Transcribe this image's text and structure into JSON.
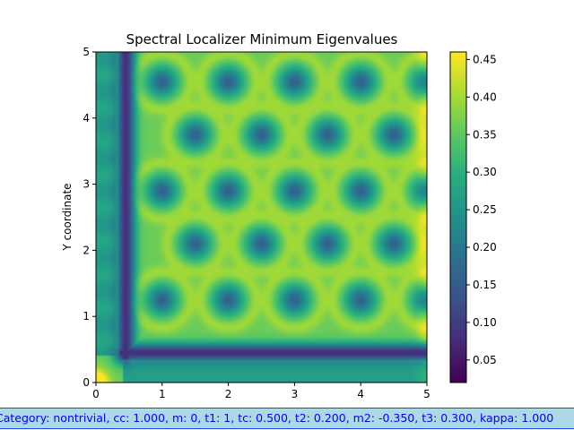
{
  "chart_data": {
    "type": "heatmap",
    "title": "Spectral Localizer Minimum Eigenvalues",
    "xlabel": "",
    "ylabel": "Y coordinate",
    "xlim": [
      0,
      5
    ],
    "ylim": [
      0,
      5
    ],
    "x_ticks": [
      0,
      1,
      2,
      3,
      4,
      5
    ],
    "y_ticks": [
      0,
      1,
      2,
      3,
      4,
      5
    ],
    "colormap": "viridis",
    "colorbar": {
      "range": [
        0.02,
        0.46
      ],
      "ticks": [
        "0.05",
        "0.10",
        "0.15",
        "0.20",
        "0.25",
        "0.30",
        "0.35",
        "0.40",
        "0.45"
      ]
    },
    "pattern": {
      "lattice": "triangular",
      "low_value_centers_rows": [
        {
          "y": 1.25,
          "x": [
            1.0,
            2.0,
            3.0,
            4.0,
            5.0
          ]
        },
        {
          "y": 2.1,
          "x": [
            1.5,
            2.5,
            3.5,
            4.5
          ]
        },
        {
          "y": 2.9,
          "x": [
            1.0,
            2.0,
            3.0,
            4.0,
            5.0
          ]
        },
        {
          "y": 3.75,
          "x": [
            1.5,
            2.5,
            3.5,
            4.5
          ]
        },
        {
          "y": 4.55,
          "x": [
            1.0,
            2.0,
            3.0,
            4.0,
            5.0
          ]
        }
      ],
      "edge_band_value": 0.08,
      "bulk_value": 0.36
    },
    "grid": false,
    "legend": "none"
  },
  "status": {
    "text": "Category: nontrivial, cc: 1.000, m: 0, t1: 1, tc: 0.500, t2: 0.200, m2: -0.350, t3: 0.300, kappa: 1.000"
  }
}
